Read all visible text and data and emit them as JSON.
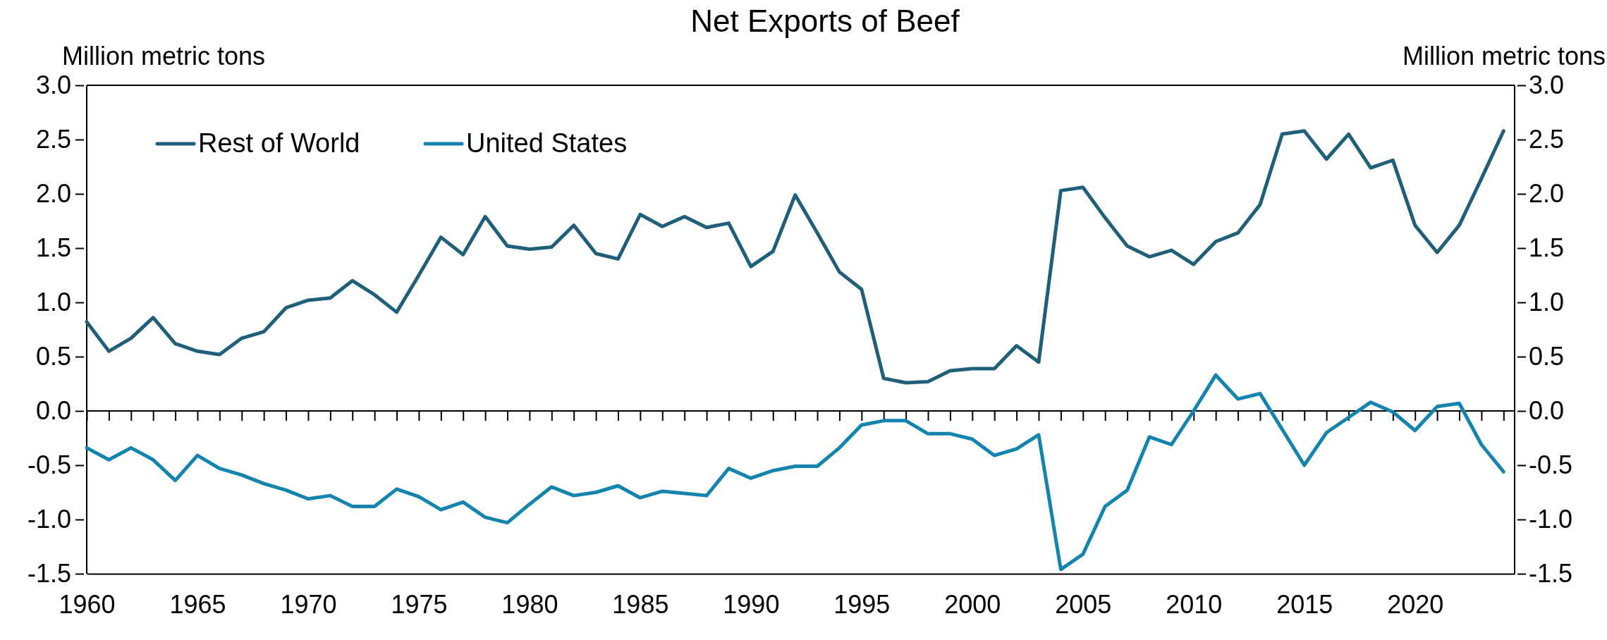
{
  "chart_data": {
    "type": "line",
    "title": "Net Exports of Beef",
    "ylabel": "Million metric tons",
    "y2label": "Million metric tons",
    "x": [
      1960,
      1961,
      1962,
      1963,
      1964,
      1965,
      1966,
      1967,
      1968,
      1969,
      1970,
      1971,
      1972,
      1973,
      1974,
      1975,
      1976,
      1977,
      1978,
      1979,
      1980,
      1981,
      1982,
      1983,
      1984,
      1985,
      1986,
      1987,
      1988,
      1989,
      1990,
      1991,
      1992,
      1993,
      1994,
      1995,
      1996,
      1997,
      1998,
      1999,
      2000,
      2001,
      2002,
      2003,
      2004,
      2005,
      2006,
      2007,
      2008,
      2009,
      2010,
      2011,
      2012,
      2013,
      2014,
      2015,
      2016,
      2017,
      2018,
      2019,
      2020,
      2021,
      2022,
      2023,
      2024
    ],
    "series": [
      {
        "name": "Rest of World",
        "color": "#1f5f7a",
        "values": [
          0.82,
          0.55,
          0.67,
          0.86,
          0.62,
          0.55,
          0.52,
          0.67,
          0.73,
          0.95,
          1.02,
          1.04,
          1.2,
          1.07,
          0.91,
          1.25,
          1.6,
          1.44,
          1.79,
          1.52,
          1.49,
          1.51,
          1.71,
          1.45,
          1.4,
          1.81,
          1.7,
          1.79,
          1.69,
          1.73,
          1.33,
          1.47,
          1.99,
          1.64,
          1.28,
          1.12,
          0.3,
          0.26,
          0.27,
          0.37,
          0.39,
          0.39,
          0.6,
          0.45,
          2.03,
          2.06,
          1.78,
          1.52,
          1.42,
          1.48,
          1.35,
          1.56,
          1.64,
          1.9,
          2.55,
          2.58,
          2.32,
          2.55,
          2.24,
          2.31,
          1.71,
          1.46,
          1.71,
          2.14,
          2.58
        ]
      },
      {
        "name": "United States",
        "color": "#1384ad",
        "values": [
          -0.34,
          -0.45,
          -0.34,
          -0.45,
          -0.64,
          -0.41,
          -0.53,
          -0.59,
          -0.67,
          -0.73,
          -0.81,
          -0.78,
          -0.88,
          -0.88,
          -0.72,
          -0.79,
          -0.91,
          -0.84,
          -0.98,
          -1.03,
          -0.86,
          -0.7,
          -0.78,
          -0.75,
          -0.69,
          -0.8,
          -0.74,
          -0.76,
          -0.78,
          -0.53,
          -0.62,
          -0.55,
          -0.51,
          -0.51,
          -0.34,
          -0.13,
          -0.09,
          -0.09,
          -0.21,
          -0.21,
          -0.26,
          -0.41,
          -0.35,
          -0.22,
          -1.46,
          -1.32,
          -0.88,
          -0.73,
          -0.24,
          -0.31,
          0.0,
          0.33,
          0.11,
          0.16,
          -0.17,
          -0.5,
          -0.2,
          -0.06,
          0.08,
          -0.01,
          -0.18,
          0.04,
          0.07,
          -0.31,
          -0.56
        ]
      }
    ],
    "xlim": [
      1960,
      2024.5
    ],
    "xticks": [
      1960,
      {
        "value": 1961,
        "label": null
      },
      {
        "value": 1962,
        "label": null
      },
      {
        "value": 1963,
        "label": null
      },
      {
        "value": 1964,
        "label": null
      },
      1965,
      {
        "value": 1966,
        "label": null
      },
      {
        "value": 1967,
        "label": null
      },
      {
        "value": 1968,
        "label": null
      },
      {
        "value": 1969,
        "label": null
      },
      1970,
      {
        "value": 1971,
        "label": null
      },
      {
        "value": 1972,
        "label": null
      },
      {
        "value": 1973,
        "label": null
      },
      {
        "value": 1974,
        "label": null
      },
      1975,
      {
        "value": 1976,
        "label": null
      },
      {
        "value": 1977,
        "label": null
      },
      {
        "value": 1978,
        "label": null
      },
      {
        "value": 1979,
        "label": null
      },
      1980,
      {
        "value": 1981,
        "label": null
      },
      {
        "value": 1982,
        "label": null
      },
      {
        "value": 1983,
        "label": null
      },
      {
        "value": 1984,
        "label": null
      },
      1985,
      {
        "value": 1986,
        "label": null
      },
      {
        "value": 1987,
        "label": null
      },
      {
        "value": 1988,
        "label": null
      },
      {
        "value": 1989,
        "label": null
      },
      1990,
      {
        "value": 1991,
        "label": null
      },
      {
        "value": 1992,
        "label": null
      },
      {
        "value": 1993,
        "label": null
      },
      {
        "value": 1994,
        "label": null
      },
      1995,
      {
        "value": 1996,
        "label": null
      },
      {
        "value": 1997,
        "label": null
      },
      {
        "value": 1998,
        "label": null
      },
      {
        "value": 1999,
        "label": null
      },
      2000,
      {
        "value": 2001,
        "label": null
      },
      {
        "value": 2002,
        "label": null
      },
      {
        "value": 2003,
        "label": null
      },
      {
        "value": 2004,
        "label": null
      },
      2005,
      {
        "value": 2006,
        "label": null
      },
      {
        "value": 2007,
        "label": null
      },
      {
        "value": 2008,
        "label": null
      },
      {
        "value": 2009,
        "label": null
      },
      2010,
      {
        "value": 2011,
        "label": null
      },
      {
        "value": 2012,
        "label": null
      },
      {
        "value": 2013,
        "label": null
      },
      {
        "value": 2014,
        "label": null
      },
      2015,
      {
        "value": 2016,
        "label": null
      },
      {
        "value": 2017,
        "label": null
      },
      {
        "value": 2018,
        "label": null
      },
      {
        "value": 2019,
        "label": null
      },
      2020,
      {
        "value": 2021,
        "label": null
      },
      {
        "value": 2022,
        "label": null
      },
      {
        "value": 2023,
        "label": null
      },
      {
        "value": 2024,
        "label": null
      }
    ],
    "ylim": [
      -1.5,
      3.0
    ],
    "yticks": [
      {
        "value": -1.5,
        "label": "-1.5"
      },
      {
        "value": -1.0,
        "label": "-1.0"
      },
      {
        "value": -0.5,
        "label": "-0.5"
      },
      {
        "value": 0,
        "label": "0.0"
      },
      {
        "value": 0.5,
        "label": "0.5"
      },
      {
        "value": 1.0,
        "label": "1.0"
      },
      {
        "value": 1.5,
        "label": "1.5"
      },
      {
        "value": 2.0,
        "label": "2.0"
      },
      {
        "value": 2.5,
        "label": "2.5"
      },
      {
        "value": 3.0,
        "label": "3.0"
      }
    ],
    "y2lim": [
      -1.5,
      3.0
    ],
    "y2ticks": [
      {
        "value": -1.5,
        "label": "-1.5"
      },
      {
        "value": -1.0,
        "label": "-1.0"
      },
      {
        "value": -0.5,
        "label": "-0.5"
      },
      {
        "value": 0,
        "label": "0.0"
      },
      {
        "value": 0.5,
        "label": "0.5"
      },
      {
        "value": 1.0,
        "label": "1.0"
      },
      {
        "value": 1.5,
        "label": "1.5"
      },
      {
        "value": 2.0,
        "label": "2.0"
      },
      {
        "value": 2.5,
        "label": "2.5"
      },
      {
        "value": 3.0,
        "label": "3.0"
      }
    ],
    "ref_lines": [
      {
        "axis": "y",
        "value": 0,
        "color": "#000000"
      }
    ],
    "legend": "top left",
    "grid": false,
    "marker": "none",
    "line_style": "solid"
  }
}
